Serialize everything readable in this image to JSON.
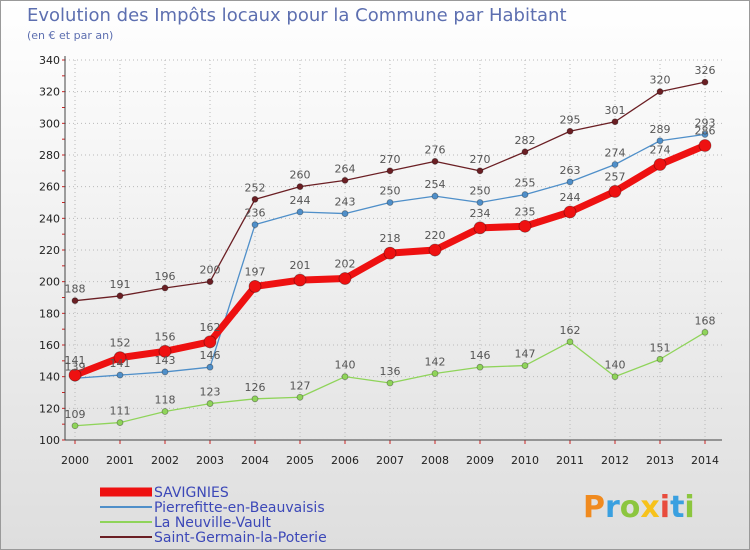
{
  "chart_data": {
    "type": "line",
    "title": "Evolution des Impôts locaux pour la Commune par Habitant",
    "subtitle": "(en € et par an)",
    "xlabel": "",
    "ylabel": "",
    "ylim": [
      100,
      340
    ],
    "yticks": [
      100,
      120,
      140,
      160,
      180,
      200,
      220,
      240,
      260,
      280,
      300,
      320,
      340
    ],
    "grid": true,
    "legend_position": "bottom-left",
    "x": [
      "2000",
      "2001",
      "2002",
      "2003",
      "2004",
      "2005",
      "2006",
      "2007",
      "2008",
      "2009",
      "2010",
      "2011",
      "2012",
      "2013",
      "2014"
    ],
    "series": [
      {
        "name": "Saint-Germain-la-Poterie",
        "color": "#6b1f24",
        "values": [
          188,
          191,
          196,
          200,
          252,
          260,
          264,
          270,
          276,
          270,
          282,
          295,
          301,
          320,
          326
        ]
      },
      {
        "name": "Pierrefitte-en-Beauvaisis",
        "color": "#4f8fc9",
        "values": [
          139,
          141,
          143,
          146,
          236,
          244,
          243,
          250,
          254,
          250,
          255,
          263,
          274,
          289,
          293
        ]
      },
      {
        "name": "La Neuville-Vault",
        "color": "#8fd45a",
        "values": [
          109,
          111,
          118,
          123,
          126,
          127,
          140,
          136,
          142,
          146,
          147,
          162,
          140,
          151,
          168
        ]
      },
      {
        "name": "SAVIGNIES",
        "color": "#ee1111",
        "values": [
          141,
          152,
          156,
          162,
          197,
          201,
          202,
          218,
          220,
          234,
          235,
          244,
          257,
          274,
          286
        ]
      }
    ],
    "legend_order": [
      "SAVIGNIES",
      "Pierrefitte-en-Beauvaisis",
      "La Neuville-Vault",
      "Saint-Germain-la-Poterie"
    ]
  },
  "logo": {
    "text": "Proxiti",
    "letters": [
      {
        "ch": "P",
        "color": "#f08a1e"
      },
      {
        "ch": "r",
        "color": "#3aa0e0"
      },
      {
        "ch": "o",
        "color": "#8cc63f"
      },
      {
        "ch": "x",
        "color": "#f7c21b"
      },
      {
        "ch": "i",
        "color": "#e84c3d"
      },
      {
        "ch": "t",
        "color": "#3aa0e0"
      },
      {
        "ch": "i",
        "color": "#8cc63f"
      }
    ]
  }
}
